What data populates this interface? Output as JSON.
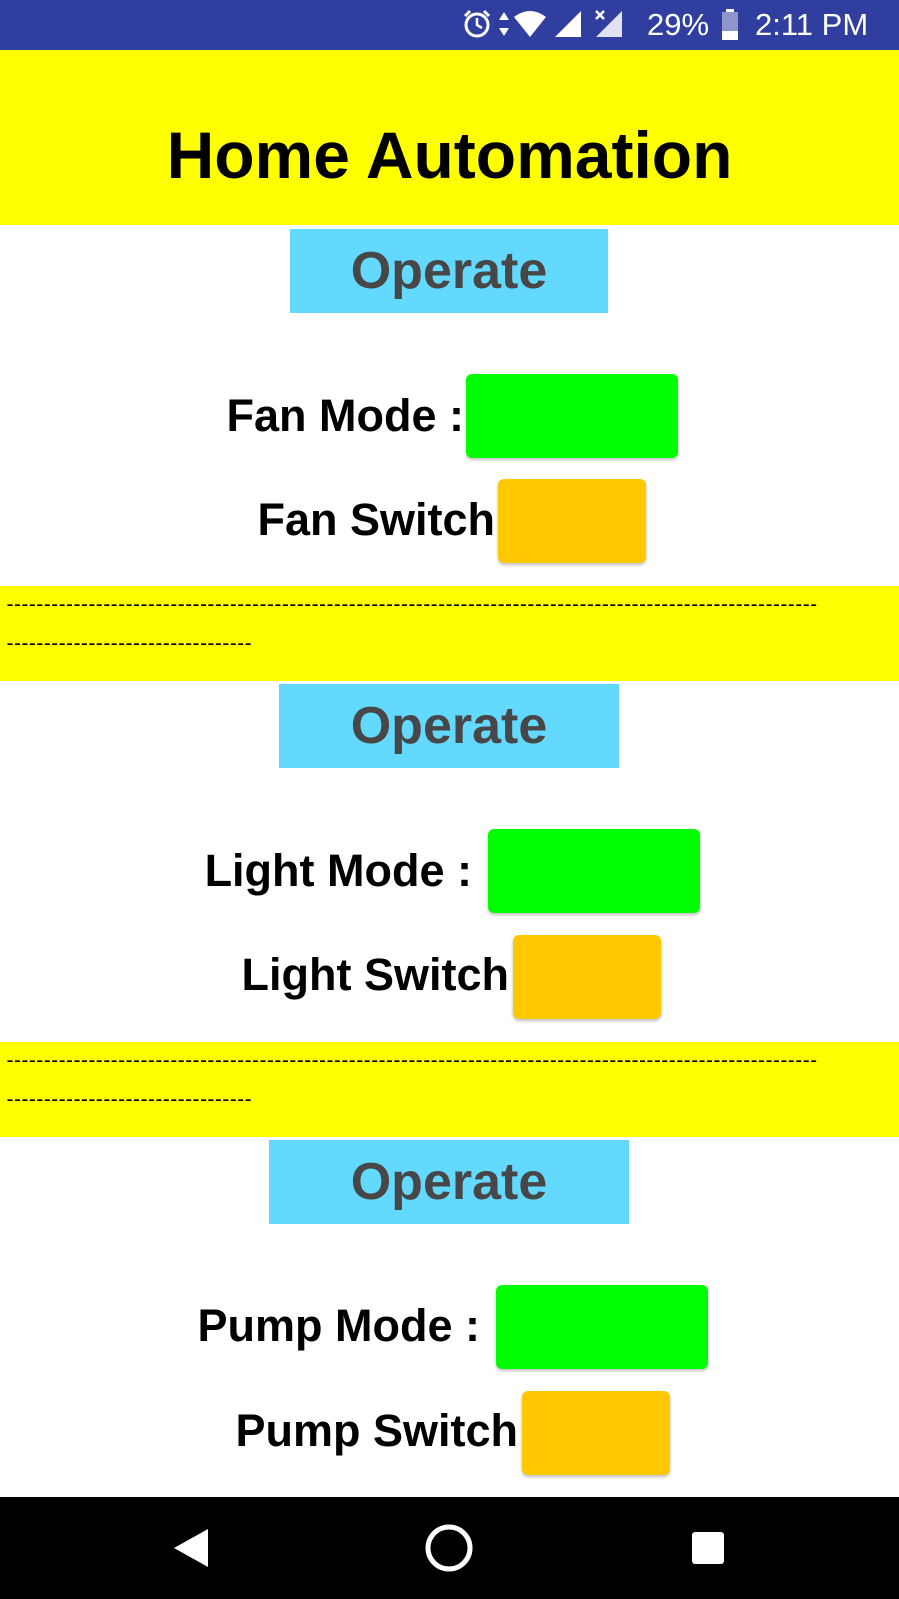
{
  "status_bar": {
    "battery": "29%",
    "time": "2:11 PM",
    "icons": [
      "alarm-icon",
      "data-arrows-icon",
      "wifi-icon",
      "signal-icon",
      "signal-no-sim-icon",
      "battery-icon"
    ]
  },
  "header": {
    "title": "Home Automation"
  },
  "sections": [
    {
      "operate_label": "Operate",
      "mode_label": "Fan Mode :",
      "switch_label": "Fan Switch"
    },
    {
      "operate_label": "Operate",
      "mode_label": "Light Mode :",
      "switch_label": "Light Switch"
    },
    {
      "operate_label": "Operate",
      "mode_label": "Pump Mode :",
      "switch_label": "Pump Switch"
    }
  ],
  "separators": [
    {
      "line1": "-------------------------------------------------------------------------------------------------------------",
      "line2": "---------------------------------"
    },
    {
      "line1": "-------------------------------------------------------------------------------------------------------------",
      "line2": "---------------------------------"
    }
  ],
  "colors": {
    "status_bar": "#303f9f",
    "banner": "#ffff00",
    "operate": "#64d9ff",
    "mode_button": "#00ff00",
    "switch_button": "#ffc800"
  },
  "nav": {
    "icons": [
      "back-icon",
      "home-icon",
      "recents-icon"
    ]
  }
}
